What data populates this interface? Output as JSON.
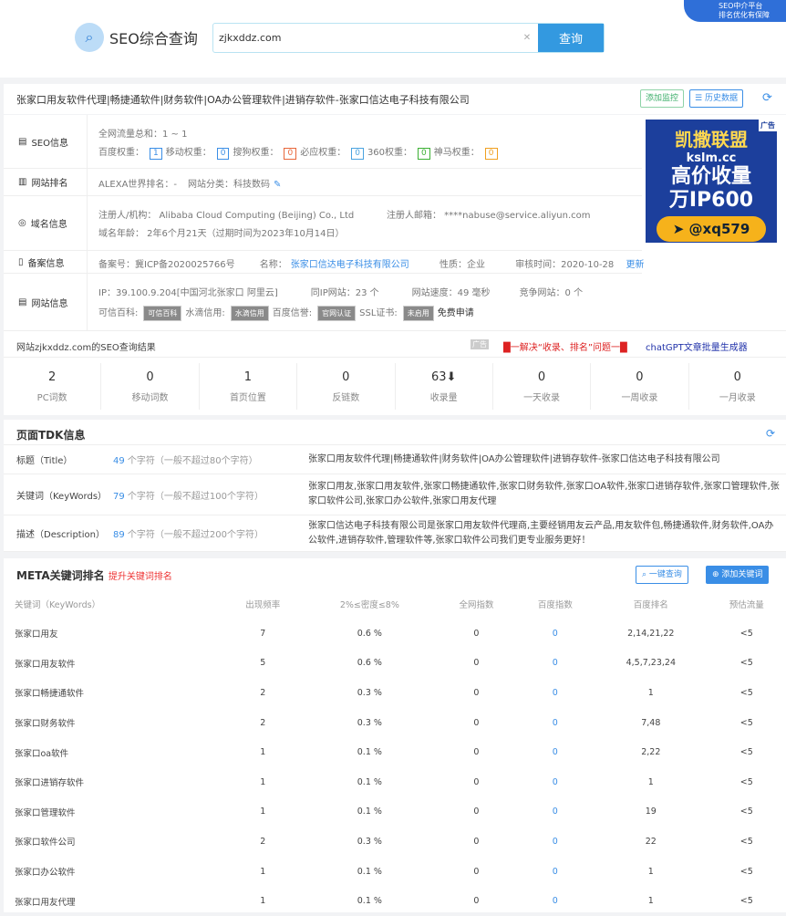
{
  "header": {
    "logo": "SEO综合查询",
    "search_value": "zjkxddz.com",
    "search_button": "查询",
    "corner": [
      "SEO中介平台",
      "排名优化有保障"
    ]
  },
  "title": {
    "text": "张家口用友软件代理|畅捷通软件|财务软件|OA办公管理软件|进销存软件-张家口信达电子科技有限公司",
    "monitor": "添加监控",
    "history": "历史数据"
  },
  "seo": {
    "label": "SEO信息",
    "traffic": "全网流量总和：1 ~ 1",
    "weights": [
      {
        "name": "百度权重：",
        "value": "1",
        "color": "#3a8ee6"
      },
      {
        "name": "移动权重：",
        "value": "0",
        "color": "#3a8ee6"
      },
      {
        "name": "搜狗权重：",
        "value": "0",
        "color": "#e8663a"
      },
      {
        "name": "必应权重：",
        "value": "0",
        "color": "#4aa3e0"
      },
      {
        "name": "360权重：",
        "value": "0",
        "color": "#3cb034"
      },
      {
        "name": "神马权重：",
        "value": "0",
        "color": "#f0a020"
      }
    ]
  },
  "rank": {
    "label": "网站排名",
    "alexa": "ALEXA世界排名：-",
    "category": "网站分类：科技数码"
  },
  "domain": {
    "label": "域名信息",
    "registrant": "注册人/机构： Alibaba Cloud Computing (Beijing) Co., Ltd",
    "email": "注册人邮箱： ****nabuse@service.aliyun.com",
    "age": "域名年龄： 2年6个月21天（过期时间为2023年10月14日）"
  },
  "icp": {
    "label": "备案信息",
    "number": "备案号：冀ICP备2020025766号",
    "name_label": "名称：",
    "name": "张家口信达电子科技有限公司",
    "type": "性质：企业",
    "date": "审核时间：2020-10-28",
    "update": "更新"
  },
  "site": {
    "label": "网站信息",
    "ip": "IP：39.100.9.204[中国河北张家口 阿里云]",
    "same_ip": "同IP网站：23 个",
    "speed": "网站速度：49 毫秒",
    "competitors": "竞争网站：0 个",
    "trust": [
      {
        "name": "可信百科:",
        "tag": "可信百科"
      },
      {
        "name": "水滴信用:",
        "tag": "水滴信用"
      },
      {
        "name": "百度信誉:",
        "tag": "官网认证"
      },
      {
        "name": "SSL证书:",
        "tag": "未启用"
      }
    ],
    "free": "免费申请"
  },
  "ad": {
    "brand": "凯撒联盟",
    "domain": "kslm.cc",
    "line1": "高价收量",
    "line2": "万IP600",
    "contact": "@xq579",
    "tag": "广告"
  },
  "result": {
    "title": "网站zjkxddz.com的SEO查询结果",
    "ad_tag": "广告",
    "promo": "█一解决“收录、排名”问题一█",
    "chatgpt": "chatGPT文章批量生成器"
  },
  "stats": [
    {
      "v": "2",
      "l": "PC词数"
    },
    {
      "v": "0",
      "l": "移动词数"
    },
    {
      "v": "1",
      "l": "首页位置"
    },
    {
      "v": "0",
      "l": "反链数"
    },
    {
      "v": "63⬇",
      "l": "收录量"
    },
    {
      "v": "0",
      "l": "一天收录"
    },
    {
      "v": "0",
      "l": "一周收录"
    },
    {
      "v": "0",
      "l": "一月收录"
    }
  ],
  "tdk": {
    "title": "页面TDK信息",
    "rows": [
      {
        "a": "标题（Title）",
        "n": "49",
        "b": " 个字符（一般不超过80个字符）",
        "c": "张家口用友软件代理|畅捷通软件|财务软件|OA办公管理软件|进销存软件-张家口信达电子科技有限公司"
      },
      {
        "a": "关键词（KeyWords）",
        "n": "79",
        "b": " 个字符（一般不超过100个字符）",
        "c": "张家口用友,张家口用友软件,张家口畅捷通软件,张家口财务软件,张家口OA软件,张家口进销存软件,张家口管理软件,张家口软件公司,张家口办公软件,张家口用友代理"
      },
      {
        "a": "描述（Description）",
        "n": "89",
        "b": " 个字符（一般不超过200个字符）",
        "c": "张家口信达电子科技有限公司是张家口用友软件代理商,主要经销用友云产品,用友软件包,畅捷通软件,财务软件,OA办公软件,进销存软件,管理软件等,张家口软件公司我们更专业服务更好！"
      }
    ]
  },
  "meta": {
    "title": "META关键词排名",
    "promo": "提升关键词排名",
    "query_btn": "一键查询",
    "add_btn": "添加关键词",
    "headers": [
      "关键词（KeyWords）",
      "出现频率",
      "2%≤密度≤8%",
      "全网指数",
      "百度指数",
      "百度排名",
      "预估流量"
    ],
    "rows": [
      [
        "张家口用友",
        "7",
        "0.6 %",
        "0",
        "0",
        "2,14,21,22",
        "<5"
      ],
      [
        "张家口用友软件",
        "5",
        "0.6 %",
        "0",
        "0",
        "4,5,7,23,24",
        "<5"
      ],
      [
        "张家口畅捷通软件",
        "2",
        "0.3 %",
        "0",
        "0",
        "1",
        "<5"
      ],
      [
        "张家口财务软件",
        "2",
        "0.3 %",
        "0",
        "0",
        "7,48",
        "<5"
      ],
      [
        "张家口oa软件",
        "1",
        "0.1 %",
        "0",
        "0",
        "2,22",
        "<5"
      ],
      [
        "张家口进销存软件",
        "1",
        "0.1 %",
        "0",
        "0",
        "1",
        "<5"
      ],
      [
        "张家口管理软件",
        "1",
        "0.1 %",
        "0",
        "0",
        "19",
        "<5"
      ],
      [
        "张家口软件公司",
        "2",
        "0.3 %",
        "0",
        "0",
        "22",
        "<5"
      ],
      [
        "张家口办公软件",
        "1",
        "0.1 %",
        "0",
        "0",
        "1",
        "<5"
      ],
      [
        "张家口用友代理",
        "1",
        "0.1 %",
        "0",
        "0",
        "1",
        "<5"
      ]
    ]
  }
}
